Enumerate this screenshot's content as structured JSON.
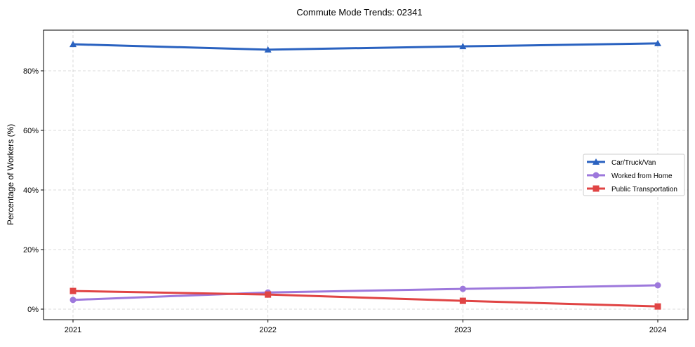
{
  "chart_data": {
    "type": "line",
    "title": "Commute Mode Trends: 02341",
    "xlabel": "",
    "ylabel": "Percentage of Workers (%)",
    "x": [
      "2021",
      "2022",
      "2023",
      "2024"
    ],
    "ylim": [
      -3.5,
      93.5
    ],
    "yticks": [
      0,
      20,
      40,
      60,
      80
    ],
    "ytick_labels": [
      "0%",
      "20%",
      "40%",
      "60%",
      "80%"
    ],
    "grid": true,
    "legend_position": "center-right",
    "series": [
      {
        "name": "Car/Truck/Van",
        "color": "#2a62c0",
        "marker": "triangle",
        "values": [
          88.9,
          87.1,
          88.2,
          89.2
        ]
      },
      {
        "name": "Worked from Home",
        "color": "#9d78dc",
        "marker": "circle",
        "values": [
          3.1,
          5.6,
          6.8,
          8.0
        ]
      },
      {
        "name": "Public Transportation",
        "color": "#e04444",
        "marker": "square",
        "values": [
          6.1,
          4.9,
          2.8,
          0.9
        ]
      }
    ]
  }
}
